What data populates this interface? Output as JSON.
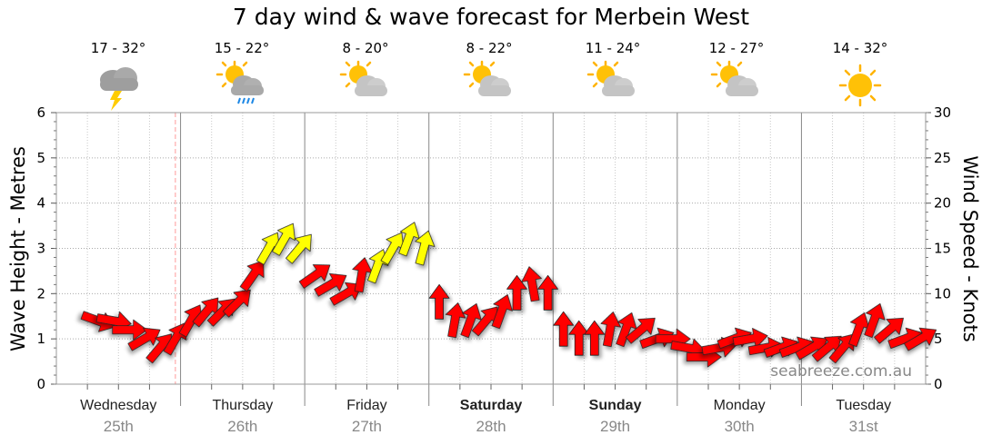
{
  "title": "7 day wind & wave forecast for Merbein West",
  "watermark": "seabreeze.com.au",
  "forecast": [
    {
      "temp": "17 - 32°",
      "icon": "storm-cloud-icon"
    },
    {
      "temp": "15 - 22°",
      "icon": "sun-cloud-rain-icon"
    },
    {
      "temp": "8 - 20°",
      "icon": "partly-cloudy-icon"
    },
    {
      "temp": "8 - 22°",
      "icon": "partly-cloudy-icon"
    },
    {
      "temp": "11 - 24°",
      "icon": "partly-cloudy-icon"
    },
    {
      "temp": "12 - 27°",
      "icon": "partly-cloudy-icon"
    },
    {
      "temp": "14 - 32°",
      "icon": "sunny-icon"
    }
  ],
  "days": [
    {
      "name": "Wednesday",
      "date": "25th",
      "weekend": false
    },
    {
      "name": "Thursday",
      "date": "26th",
      "weekend": false
    },
    {
      "name": "Friday",
      "date": "27th",
      "weekend": false
    },
    {
      "name": "Saturday",
      "date": "28th",
      "weekend": true
    },
    {
      "name": "Sunday",
      "date": "29th",
      "weekend": true
    },
    {
      "name": "Monday",
      "date": "30th",
      "weekend": false
    },
    {
      "name": "Tuesday",
      "date": "31st",
      "weekend": false
    }
  ],
  "colors": {
    "light_wind": "#ffff00",
    "strong_wind": "#ff0000",
    "grid": "#aaaaaa",
    "now_line": "#ff9999"
  },
  "chart_data": {
    "type": "line",
    "series": [
      {
        "name": "",
        "hours": [
          8,
          11,
          14,
          17,
          20,
          23,
          26,
          29,
          32,
          35,
          38,
          41,
          44,
          47,
          50,
          53,
          56,
          59,
          62,
          65,
          68,
          71,
          74,
          77,
          80,
          83,
          86,
          89,
          92,
          95,
          98,
          101,
          104,
          107,
          110,
          113,
          116,
          119,
          122,
          125,
          128,
          131,
          134,
          137,
          140,
          143,
          146,
          149,
          152,
          155,
          158,
          161,
          164,
          167
        ],
        "x": [
          "Wed 08:00",
          "Wed 11:00",
          "Wed 14:00",
          "Wed 17:00",
          "Wed 20:00",
          "Wed 23:00",
          "Thu 02:00",
          "Thu 05:00",
          "Thu 08:00",
          "Thu 11:00",
          "Thu 14:00",
          "Thu 17:00",
          "Thu 20:00",
          "Thu 23:00",
          "Fri 02:00",
          "Fri 05:00",
          "Fri 08:00",
          "Fri 11:00",
          "Fri 14:00",
          "Fri 17:00",
          "Fri 20:00",
          "Fri 23:00",
          "Sat 02:00",
          "Sat 05:00",
          "Sat 08:00",
          "Sat 11:00",
          "Sat 14:00",
          "Sat 17:00",
          "Sat 20:00",
          "Sat 23:00",
          "Sun 02:00",
          "Sun 05:00",
          "Sun 08:00",
          "Sun 11:00",
          "Sun 14:00",
          "Sun 17:00",
          "Sun 20:00",
          "Sun 23:00",
          "Mon 02:00",
          "Mon 05:00",
          "Mon 08:00",
          "Mon 11:00",
          "Mon 14:00",
          "Mon 17:00",
          "Mon 20:00",
          "Mon 23:00",
          "Tue 02:00",
          "Tue 05:00",
          "Tue 08:00",
          "Tue 11:00",
          "Tue 14:00",
          "Tue 17:00",
          "Tue 20:00",
          "Tue 23:00"
        ],
        "y": [
          7,
          7,
          6,
          5,
          4,
          5,
          7,
          8,
          8,
          9,
          12,
          15,
          16,
          15,
          12,
          11,
          10,
          12,
          13,
          15,
          16,
          15,
          9,
          7,
          7,
          7,
          8,
          10,
          11,
          10,
          6,
          5,
          5,
          6,
          6,
          6,
          5,
          5,
          4,
          3,
          4,
          5,
          5,
          4,
          4,
          4,
          4,
          4,
          4,
          6,
          7,
          6,
          5,
          5
        ],
        "direction_deg": [
          290,
          280,
          270,
          240,
          220,
          210,
          210,
          220,
          225,
          225,
          215,
          210,
          210,
          220,
          235,
          240,
          240,
          190,
          200,
          210,
          200,
          195,
          180,
          190,
          200,
          220,
          200,
          180,
          170,
          180,
          180,
          180,
          180,
          190,
          200,
          230,
          250,
          270,
          280,
          270,
          260,
          250,
          260,
          260,
          250,
          250,
          240,
          230,
          220,
          200,
          200,
          230,
          250,
          240
        ]
      }
    ],
    "ylabel": "Wave Height - Metres",
    "ylabel_right": "Wind Speed - Knots",
    "ylim": [
      0,
      6
    ],
    "ylim_right": [
      0,
      30
    ],
    "yticks": [
      0,
      1,
      2,
      3,
      4,
      5,
      6
    ],
    "yticks_right": [
      0,
      5,
      10,
      15,
      20,
      25,
      30
    ],
    "xlim_hours": [
      0,
      168
    ],
    "now_hour": 23,
    "grid": true,
    "legend": "none"
  }
}
